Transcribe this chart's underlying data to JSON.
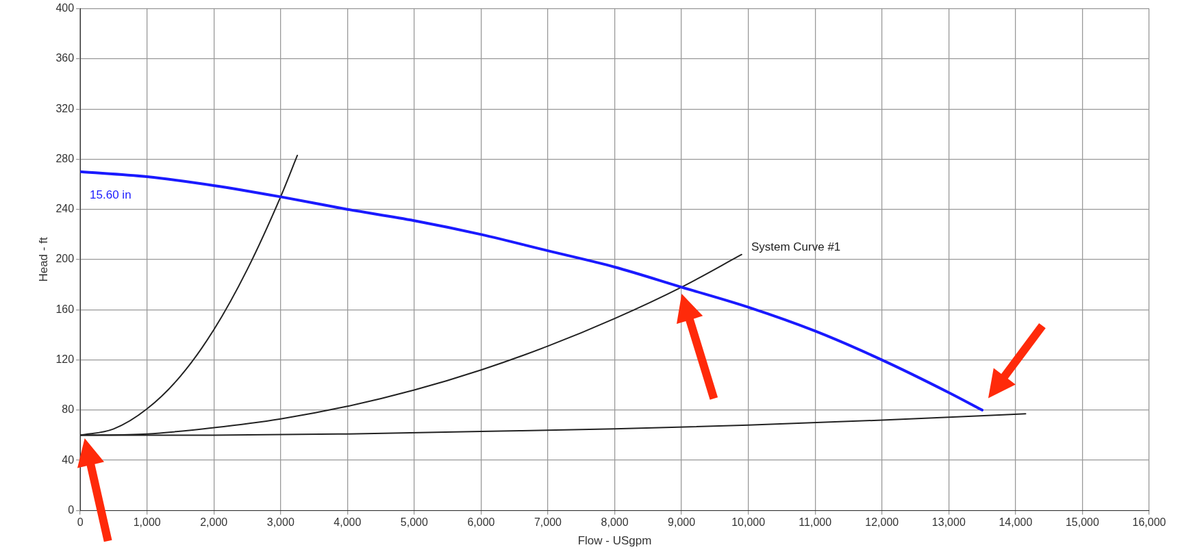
{
  "chart_data": {
    "type": "line",
    "xlabel": "Flow - USgpm",
    "ylabel": "Head - ft",
    "xlim": [
      0,
      16000
    ],
    "ylim": [
      0,
      400
    ],
    "xticks": [
      0,
      {
        "value": 1000,
        "label": "1,000"
      },
      {
        "value": 2000,
        "label": "2,000"
      },
      {
        "value": 3000,
        "label": "3,000"
      },
      {
        "value": 4000,
        "label": "4,000"
      },
      {
        "value": 5000,
        "label": "5,000"
      },
      {
        "value": 6000,
        "label": "6,000"
      },
      {
        "value": 7000,
        "label": "7,000"
      },
      {
        "value": 8000,
        "label": "8,000"
      },
      {
        "value": 9000,
        "label": "9,000"
      },
      {
        "value": 10000,
        "label": "10,000"
      },
      {
        "value": 11000,
        "label": "11,000"
      },
      {
        "value": 12000,
        "label": "12,000"
      },
      {
        "value": 13000,
        "label": "13,000"
      },
      {
        "value": 14000,
        "label": "14,000"
      },
      {
        "value": 15000,
        "label": "15,000"
      },
      {
        "value": 16000,
        "label": "16,000"
      }
    ],
    "yticks": [
      0,
      40,
      80,
      120,
      160,
      200,
      240,
      280,
      320,
      360,
      400
    ],
    "grid": true,
    "legend": false,
    "marker": "none",
    "line_style": "solid",
    "series": [
      {
        "name": "15.60 in",
        "color": "#1a1aff",
        "x": [
          0,
          1000,
          2000,
          3000,
          4000,
          5000,
          6000,
          7000,
          8000,
          9000,
          10000,
          11000,
          12000,
          13000,
          13500
        ],
        "values": [
          270,
          266,
          259,
          250,
          240,
          231,
          220,
          207,
          194,
          178,
          162,
          143,
          120,
          94,
          80
        ]
      },
      {
        "name": "System Curve #1",
        "color": "#222222",
        "x": [
          0,
          1000,
          2000,
          3000,
          4000,
          5000,
          6000,
          7000,
          8000,
          9000,
          9900
        ],
        "values": [
          60,
          61,
          66,
          73,
          83,
          96,
          112,
          131,
          153,
          178,
          204
        ]
      },
      {
        "color": "#222222",
        "x": [
          0,
          500,
          1000,
          1500,
          2000,
          2500,
          3000,
          3250
        ],
        "values": [
          60,
          65,
          81,
          107,
          144,
          192,
          250,
          283
        ]
      },
      {
        "color": "#222222",
        "x": [
          0,
          2000,
          4000,
          6000,
          8000,
          10000,
          12000,
          14150
        ],
        "values": [
          60,
          60,
          61,
          63,
          65,
          68,
          72,
          77
        ]
      }
    ]
  }
}
